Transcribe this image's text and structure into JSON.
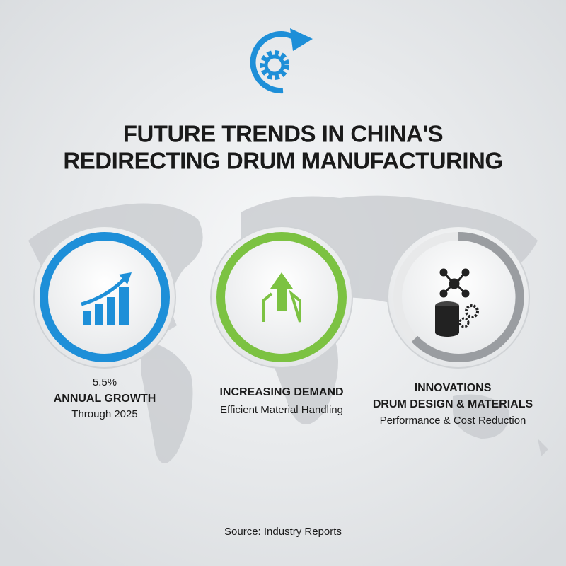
{
  "header": {
    "title": [
      "FUTURE TRENDS IN CHINA'S",
      "REDIRECTING DRUM MANUFACTURING"
    ]
  },
  "items": [
    {
      "lines": [
        "5.5%",
        "ANNUAL GROWTH",
        "Through 2025"
      ]
    },
    {
      "lines": [
        "INCREASING DEMAND",
        "Efficient Material Handling"
      ]
    },
    {
      "lines": [
        "INNOVATIONS",
        "DRUM DESIGN & MATERIALS",
        "Performance & Cost Reduction"
      ]
    }
  ],
  "footer": {
    "source": "Source: Industry Reports"
  }
}
